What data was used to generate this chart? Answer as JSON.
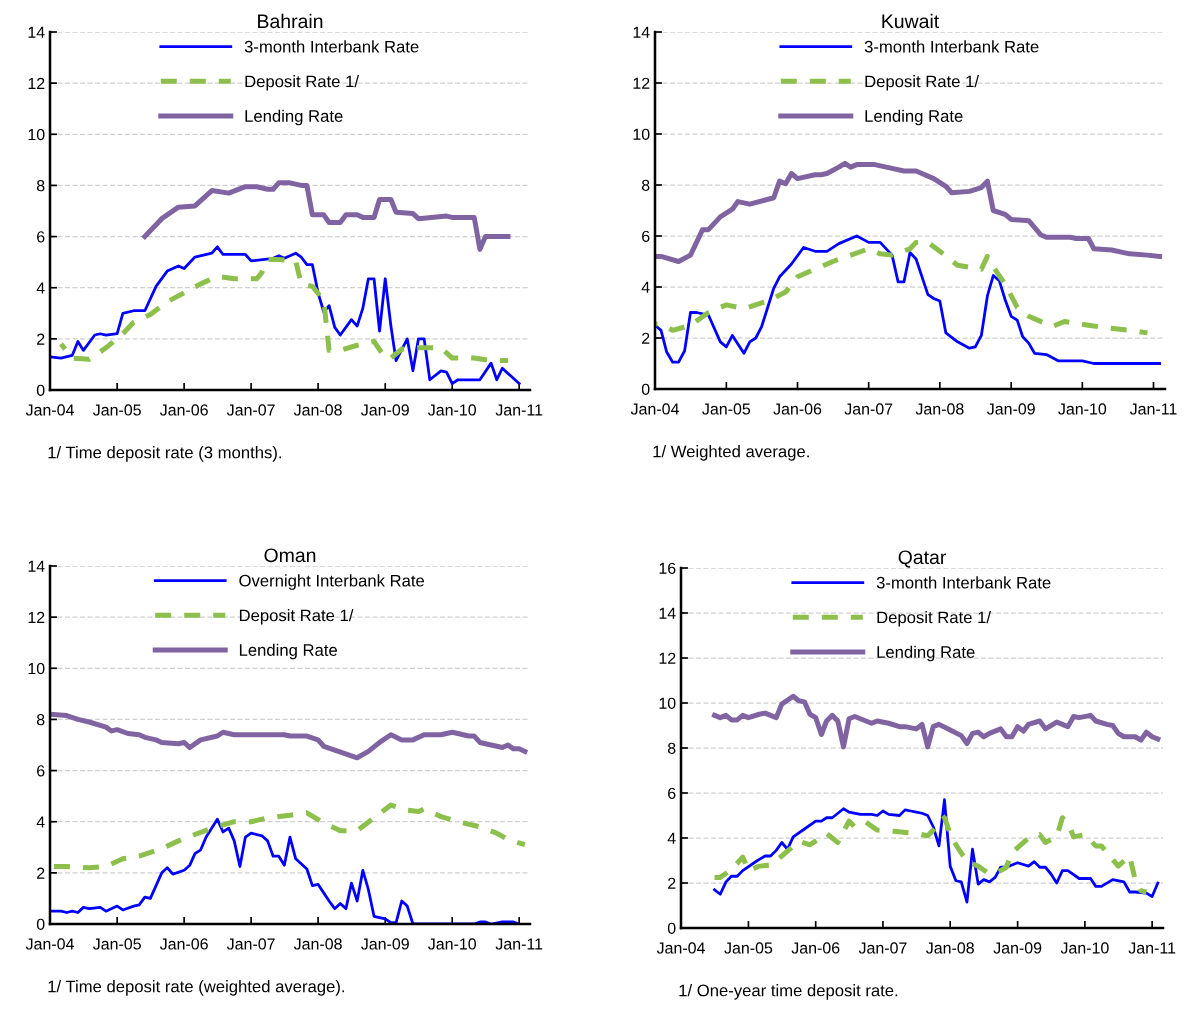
{
  "chart_data": [
    {
      "type": "line",
      "title": "Bahrain",
      "annotations": [
        "1/ Time deposit rate (3 months)."
      ],
      "legend": "top",
      "grid": "y",
      "xlim": [
        "2004-01",
        "2011-03"
      ],
      "xticks": [
        {
          "value": "2004-01",
          "label": "Jan-04"
        },
        {
          "value": "2005-01",
          "label": "Jan-05"
        },
        {
          "value": "2006-01",
          "label": "Jan-06"
        },
        {
          "value": "2007-01",
          "label": "Jan-07"
        },
        {
          "value": "2008-01",
          "label": "Jan-08"
        },
        {
          "value": "2009-01",
          "label": "Jan-09"
        },
        {
          "value": "2010-01",
          "label": "Jan-10"
        },
        {
          "value": "2011-01",
          "label": "Jan-11"
        }
      ],
      "ylim": [
        0,
        14
      ],
      "yticks": [
        0,
        2,
        4,
        6,
        8,
        10,
        12,
        14
      ],
      "series": [
        {
          "name": "3-month Interbank Rate",
          "color": "#0000ff",
          "line_style": "solid",
          "x": [
            "2004-01",
            "2004-03",
            "2004-05",
            "2004-06",
            "2004-07",
            "2004-09",
            "2004-10",
            "2004-11",
            "2005-01",
            "2005-02",
            "2005-04",
            "2005-06",
            "2005-08",
            "2005-10",
            "2005-12",
            "2006-01",
            "2006-03",
            "2006-06",
            "2006-07",
            "2006-08",
            "2006-12",
            "2007-01",
            "2007-05",
            "2007-06",
            "2007-07",
            "2007-09",
            "2007-10",
            "2007-11",
            "2007-12",
            "2008-01",
            "2008-02",
            "2008-03",
            "2008-04",
            "2008-05",
            "2008-07",
            "2008-08",
            "2008-09",
            "2008-10",
            "2008-11",
            "2008-12",
            "2009-01",
            "2009-02",
            "2009-03",
            "2009-05",
            "2009-06",
            "2009-07",
            "2009-08",
            "2009-09",
            "2009-11",
            "2009-12",
            "2010-01",
            "2010-02",
            "2010-06",
            "2010-08",
            "2010-09",
            "2010-10",
            "2011-01"
          ],
          "values": [
            1.3,
            1.25,
            1.35,
            1.9,
            1.55,
            2.15,
            2.2,
            2.15,
            2.2,
            3.0,
            3.1,
            3.1,
            4.05,
            4.65,
            4.85,
            4.75,
            5.2,
            5.35,
            5.6,
            5.3,
            5.3,
            5.05,
            5.15,
            5.25,
            5.15,
            5.35,
            5.2,
            4.9,
            4.9,
            3.8,
            3.05,
            3.3,
            2.45,
            2.15,
            2.75,
            2.5,
            3.2,
            4.35,
            4.35,
            2.3,
            4.35,
            2.5,
            1.15,
            2.0,
            0.75,
            2.0,
            2.0,
            0.4,
            0.75,
            0.7,
            0.25,
            0.4,
            0.4,
            1.05,
            0.4,
            0.85,
            0.25
          ]
        },
        {
          "name": "Deposit Rate 1/",
          "color": "#8cbf4b",
          "line_style": "dashed",
          "x": [
            "2004-03",
            "2004-05",
            "2004-08",
            "2004-11",
            "2005-02",
            "2005-04",
            "2005-07",
            "2005-10",
            "2006-01",
            "2006-04",
            "2006-07",
            "2006-10",
            "2007-02",
            "2007-03",
            "2007-04",
            "2007-06",
            "2007-09",
            "2007-10",
            "2007-12",
            "2008-02",
            "2008-03",
            "2008-05",
            "2008-08",
            "2008-11",
            "2009-01",
            "2009-02",
            "2009-04",
            "2009-07",
            "2009-11",
            "2010-01",
            "2010-05",
            "2010-08",
            "2010-11"
          ],
          "values": [
            1.8,
            1.25,
            1.2,
            1.65,
            2.2,
            2.65,
            2.95,
            3.45,
            3.8,
            4.15,
            4.45,
            4.35,
            4.35,
            4.6,
            5.1,
            5.1,
            5.05,
            4.15,
            4.05,
            3.5,
            1.55,
            1.55,
            1.75,
            1.9,
            1.25,
            1.25,
            1.6,
            1.65,
            1.65,
            1.25,
            1.25,
            1.15,
            1.15
          ]
        },
        {
          "name": "Lending Rate",
          "color": "#8064a2",
          "line_style": "solid",
          "x": [
            "2005-06",
            "2005-09",
            "2005-12",
            "2006-03",
            "2006-06",
            "2006-09",
            "2006-12",
            "2007-02",
            "2007-04",
            "2007-05",
            "2007-06",
            "2007-08",
            "2007-10",
            "2007-11",
            "2007-12",
            "2008-02",
            "2008-03",
            "2008-05",
            "2008-06",
            "2008-08",
            "2008-09",
            "2008-11",
            "2008-12",
            "2009-02",
            "2009-03",
            "2009-06",
            "2009-07",
            "2009-12",
            "2010-01",
            "2010-05",
            "2010-06",
            "2010-07",
            "2010-11"
          ],
          "values": [
            6.0,
            6.7,
            7.15,
            7.2,
            7.8,
            7.7,
            7.95,
            7.95,
            7.85,
            7.85,
            8.1,
            8.1,
            8.0,
            8.0,
            6.85,
            6.85,
            6.55,
            6.55,
            6.85,
            6.85,
            6.75,
            6.75,
            7.45,
            7.45,
            6.95,
            6.9,
            6.7,
            6.8,
            6.75,
            6.75,
            5.5,
            6.0,
            6.0
          ]
        }
      ]
    },
    {
      "type": "line",
      "title": "Kuwait",
      "annotations": [
        "1/ Weighted average."
      ],
      "legend": "top",
      "grid": "y",
      "xlim": [
        "2004-01",
        "2011-03"
      ],
      "xticks": [
        {
          "value": "2004-01",
          "label": "Jan-04"
        },
        {
          "value": "2005-01",
          "label": "Jan-05"
        },
        {
          "value": "2006-01",
          "label": "Jan-06"
        },
        {
          "value": "2007-01",
          "label": "Jan-07"
        },
        {
          "value": "2008-01",
          "label": "Jan-08"
        },
        {
          "value": "2009-01",
          "label": "Jan-09"
        },
        {
          "value": "2010-01",
          "label": "Jan-10"
        },
        {
          "value": "2011-01",
          "label": "Jan-11"
        }
      ],
      "ylim": [
        0,
        14
      ],
      "yticks": [
        0,
        2,
        4,
        6,
        8,
        10,
        12,
        14
      ],
      "series": [
        {
          "name": "3-month Interbank Rate",
          "color": "#0000ff",
          "line_style": "solid",
          "x": [
            "2004-01",
            "2004-02",
            "2004-03",
            "2004-04",
            "2004-05",
            "2004-06",
            "2004-07",
            "2004-08",
            "2004-10",
            "2004-12",
            "2005-01",
            "2005-02",
            "2005-04",
            "2005-05",
            "2005-06",
            "2005-07",
            "2005-09",
            "2005-10",
            "2005-12",
            "2006-02",
            "2006-04",
            "2006-06",
            "2006-08",
            "2006-11",
            "2007-01",
            "2007-03",
            "2007-05",
            "2007-06",
            "2007-07",
            "2007-08",
            "2007-09",
            "2007-11",
            "2007-12",
            "2008-01",
            "2008-02",
            "2008-04",
            "2008-06",
            "2008-07",
            "2008-08",
            "2008-09",
            "2008-10",
            "2008-11",
            "2008-12",
            "2009-01",
            "2009-02",
            "2009-03",
            "2009-04",
            "2009-05",
            "2009-07",
            "2009-09",
            "2010-01",
            "2010-03",
            "2011-02"
          ],
          "values": [
            2.5,
            2.3,
            1.45,
            1.05,
            1.05,
            1.5,
            3.0,
            3.0,
            2.9,
            1.85,
            1.65,
            2.1,
            1.4,
            1.85,
            2.0,
            2.45,
            3.95,
            4.4,
            4.9,
            5.55,
            5.4,
            5.4,
            5.7,
            6.0,
            5.75,
            5.75,
            5.25,
            4.2,
            4.2,
            5.35,
            5.1,
            3.7,
            3.55,
            3.45,
            2.2,
            1.85,
            1.6,
            1.65,
            2.1,
            3.65,
            4.45,
            4.25,
            3.5,
            2.85,
            2.7,
            2.05,
            1.8,
            1.4,
            1.35,
            1.1,
            1.1,
            1.0,
            1.0
          ]
        },
        {
          "name": "Deposit Rate 1/",
          "color": "#8cbf4b",
          "line_style": "dashed",
          "x": [
            "2004-01",
            "2004-02",
            "2004-04",
            "2004-07",
            "2004-10",
            "2005-01",
            "2005-04",
            "2005-08",
            "2005-11",
            "2006-01",
            "2006-03",
            "2006-07",
            "2006-10",
            "2007-01",
            "2007-03",
            "2007-05",
            "2007-08",
            "2007-09",
            "2007-11",
            "2008-01",
            "2008-04",
            "2008-08",
            "2008-09",
            "2008-10",
            "2008-12",
            "2009-02",
            "2009-04",
            "2009-08",
            "2009-10",
            "2010-02",
            "2010-05",
            "2010-09",
            "2010-12"
          ],
          "values": [
            2.55,
            2.55,
            2.3,
            2.5,
            3.0,
            3.3,
            3.15,
            3.45,
            3.8,
            4.4,
            4.6,
            5.0,
            5.25,
            5.5,
            5.3,
            5.25,
            5.5,
            5.75,
            5.75,
            5.4,
            4.85,
            4.7,
            5.2,
            4.8,
            4.1,
            3.2,
            2.85,
            2.45,
            2.65,
            2.5,
            2.4,
            2.3,
            2.2
          ]
        },
        {
          "name": "Lending Rate",
          "color": "#8064a2",
          "line_style": "solid",
          "x": [
            "2004-01",
            "2004-02",
            "2004-05",
            "2004-07",
            "2004-09",
            "2004-10",
            "2004-12",
            "2005-02",
            "2005-03",
            "2005-05",
            "2005-09",
            "2005-10",
            "2005-11",
            "2005-12",
            "2006-01",
            "2006-04",
            "2006-05",
            "2006-06",
            "2006-08",
            "2006-09",
            "2006-10",
            "2006-11",
            "2007-02",
            "2007-05",
            "2007-07",
            "2007-09",
            "2007-10",
            "2007-12",
            "2008-02",
            "2008-03",
            "2008-06",
            "2008-08",
            "2008-09",
            "2008-10",
            "2008-12",
            "2009-01",
            "2009-04",
            "2009-06",
            "2009-07",
            "2009-11",
            "2009-12",
            "2010-02",
            "2010-03",
            "2010-06",
            "2010-08",
            "2010-09",
            "2010-12",
            "2011-02"
          ],
          "values": [
            5.2,
            5.2,
            5.0,
            5.25,
            6.25,
            6.25,
            6.75,
            7.05,
            7.35,
            7.25,
            7.5,
            8.15,
            8.05,
            8.45,
            8.25,
            8.4,
            8.4,
            8.45,
            8.7,
            8.85,
            8.7,
            8.8,
            8.8,
            8.65,
            8.55,
            8.55,
            8.45,
            8.25,
            7.95,
            7.7,
            7.75,
            7.9,
            8.15,
            7.0,
            6.85,
            6.65,
            6.6,
            6.05,
            5.95,
            5.95,
            5.9,
            5.9,
            5.5,
            5.45,
            5.35,
            5.3,
            5.25,
            5.2
          ]
        }
      ]
    },
    {
      "type": "line",
      "title": "Oman",
      "annotations": [
        "1/ Time deposit rate (weighted average)."
      ],
      "legend": "top",
      "grid": "y",
      "xlim": [
        "2004-01",
        "2011-03"
      ],
      "xticks": [
        {
          "value": "2004-01",
          "label": "Jan-04"
        },
        {
          "value": "2005-01",
          "label": "Jan-05"
        },
        {
          "value": "2006-01",
          "label": "Jan-06"
        },
        {
          "value": "2007-01",
          "label": "Jan-07"
        },
        {
          "value": "2008-01",
          "label": "Jan-08"
        },
        {
          "value": "2009-01",
          "label": "Jan-09"
        },
        {
          "value": "2010-01",
          "label": "Jan-10"
        },
        {
          "value": "2011-01",
          "label": "Jan-11"
        }
      ],
      "ylim": [
        0,
        14
      ],
      "yticks": [
        0,
        2,
        4,
        6,
        8,
        10,
        12,
        14
      ],
      "series": [
        {
          "name": "Overnight Interbank Rate",
          "color": "#0000ff",
          "line_style": "solid",
          "x": [
            "2004-01",
            "2004-03",
            "2004-04",
            "2004-05",
            "2004-06",
            "2004-07",
            "2004-08",
            "2004-10",
            "2004-11",
            "2005-01",
            "2005-02",
            "2005-04",
            "2005-05",
            "2005-06",
            "2005-07",
            "2005-09",
            "2005-10",
            "2005-11",
            "2006-01",
            "2006-02",
            "2006-03",
            "2006-04",
            "2006-05",
            "2006-07",
            "2006-08",
            "2006-09",
            "2006-10",
            "2006-11",
            "2006-12",
            "2007-01",
            "2007-03",
            "2007-04",
            "2007-05",
            "2007-06",
            "2007-07",
            "2007-08",
            "2007-09",
            "2007-11",
            "2007-12",
            "2008-01",
            "2008-03",
            "2008-04",
            "2008-05",
            "2008-06",
            "2008-07",
            "2008-08",
            "2008-09",
            "2008-10",
            "2008-11",
            "2009-01",
            "2009-02",
            "2009-03",
            "2009-04",
            "2009-05",
            "2009-06",
            "2010-05",
            "2010-06",
            "2010-07",
            "2010-08",
            "2010-10",
            "2010-12",
            "2011-01"
          ],
          "values": [
            0.5,
            0.5,
            0.45,
            0.5,
            0.45,
            0.65,
            0.6,
            0.65,
            0.5,
            0.7,
            0.55,
            0.7,
            0.75,
            1.05,
            1.0,
            2.0,
            2.2,
            1.95,
            2.1,
            2.3,
            2.75,
            2.9,
            3.4,
            4.1,
            3.6,
            3.75,
            3.25,
            2.25,
            3.4,
            3.55,
            3.45,
            3.25,
            2.65,
            2.65,
            2.3,
            3.4,
            2.55,
            2.15,
            1.5,
            1.55,
            0.9,
            0.6,
            0.8,
            0.6,
            1.6,
            0.9,
            2.1,
            1.35,
            0.3,
            0.2,
            0.05,
            0.05,
            0.9,
            0.7,
            0.0,
            0.0,
            0.08,
            0.08,
            0.0,
            0.08,
            0.08,
            0.0
          ]
        },
        {
          "name": "Deposit Rate 1/",
          "color": "#8cbf4b",
          "line_style": "dashed",
          "x": [
            "2004-01",
            "2004-04",
            "2004-08",
            "2004-11",
            "2005-02",
            "2005-05",
            "2005-09",
            "2005-12",
            "2006-03",
            "2006-06",
            "2006-10",
            "2007-01",
            "2007-04",
            "2007-08",
            "2007-11",
            "2008-02",
            "2008-05",
            "2008-08",
            "2008-11",
            "2009-02",
            "2009-05",
            "2009-07",
            "2009-08",
            "2009-11",
            "2010-02",
            "2010-06",
            "2010-09",
            "2010-11",
            "2011-02"
          ],
          "values": [
            2.25,
            2.25,
            2.2,
            2.25,
            2.55,
            2.65,
            2.95,
            3.25,
            3.5,
            3.75,
            4.0,
            4.0,
            4.15,
            4.25,
            4.35,
            3.95,
            3.65,
            3.65,
            4.15,
            4.65,
            4.45,
            4.4,
            4.5,
            4.2,
            4.0,
            3.8,
            3.55,
            3.3,
            3.1
          ]
        },
        {
          "name": "Lending Rate",
          "color": "#8064a2",
          "line_style": "solid",
          "x": [
            "2004-01",
            "2004-04",
            "2004-06",
            "2004-08",
            "2004-11",
            "2004-12",
            "2005-01",
            "2005-03",
            "2005-05",
            "2005-06",
            "2005-08",
            "2005-09",
            "2005-12",
            "2006-01",
            "2006-02",
            "2006-04",
            "2006-07",
            "2006-08",
            "2006-10",
            "2007-07",
            "2007-08",
            "2007-11",
            "2008-01",
            "2008-02",
            "2008-04",
            "2008-08",
            "2008-10",
            "2008-12",
            "2009-02",
            "2009-04",
            "2009-06",
            "2009-08",
            "2009-11",
            "2010-01",
            "2010-02",
            "2010-04",
            "2010-05",
            "2010-06",
            "2010-08",
            "2010-09",
            "2010-10",
            "2010-11",
            "2010-12",
            "2011-01",
            "2011-02"
          ],
          "values": [
            8.2,
            8.15,
            8.0,
            7.9,
            7.7,
            7.55,
            7.6,
            7.45,
            7.4,
            7.3,
            7.2,
            7.1,
            7.05,
            7.1,
            6.9,
            7.2,
            7.35,
            7.5,
            7.4,
            7.4,
            7.35,
            7.35,
            7.2,
            6.95,
            6.8,
            6.5,
            6.75,
            7.1,
            7.4,
            7.2,
            7.2,
            7.4,
            7.4,
            7.5,
            7.45,
            7.35,
            7.35,
            7.1,
            7.0,
            6.95,
            6.9,
            7.0,
            6.85,
            6.85,
            6.75
          ]
        }
      ]
    },
    {
      "type": "line",
      "title": "Qatar",
      "annotations": [
        "1/ One-year time deposit rate."
      ],
      "legend": "top",
      "grid": "y",
      "xlim": [
        "2004-01",
        "2011-03"
      ],
      "xticks": [
        {
          "value": "2004-01",
          "label": "Jan-04"
        },
        {
          "value": "2005-01",
          "label": "Jan-05"
        },
        {
          "value": "2006-01",
          "label": "Jan-06"
        },
        {
          "value": "2007-01",
          "label": "Jan-07"
        },
        {
          "value": "2008-01",
          "label": "Jan-08"
        },
        {
          "value": "2009-01",
          "label": "Jan-09"
        },
        {
          "value": "2010-01",
          "label": "Jan-10"
        },
        {
          "value": "2011-01",
          "label": "Jan-11"
        }
      ],
      "ylim": [
        0,
        16
      ],
      "yticks": [
        0,
        2,
        4,
        6,
        8,
        10,
        12,
        14,
        16
      ],
      "series": [
        {
          "name": "3-month Interbank Rate",
          "color": "#0000ff",
          "line_style": "solid",
          "x": [
            "2004-07",
            "2004-08",
            "2004-09",
            "2004-10",
            "2004-11",
            "2004-12",
            "2005-02",
            "2005-03",
            "2005-04",
            "2005-05",
            "2005-06",
            "2005-07",
            "2005-08",
            "2005-09",
            "2005-11",
            "2006-01",
            "2006-02",
            "2006-03",
            "2006-04",
            "2006-06",
            "2006-07",
            "2006-09",
            "2006-11",
            "2006-12",
            "2007-01",
            "2007-02",
            "2007-04",
            "2007-05",
            "2007-06",
            "2007-07",
            "2007-08",
            "2007-09",
            "2007-10",
            "2007-11",
            "2007-12",
            "2008-01",
            "2008-02",
            "2008-03",
            "2008-04",
            "2008-05",
            "2008-06",
            "2008-07",
            "2008-08",
            "2008-09",
            "2008-10",
            "2008-11",
            "2009-01",
            "2009-03",
            "2009-04",
            "2009-05",
            "2009-06",
            "2009-07",
            "2009-08",
            "2009-09",
            "2009-10",
            "2009-12",
            "2010-02",
            "2010-03",
            "2010-04",
            "2010-06",
            "2010-08",
            "2010-09",
            "2010-10",
            "2010-12",
            "2011-01",
            "2011-02"
          ],
          "values": [
            1.7,
            1.5,
            2.05,
            2.3,
            2.3,
            2.55,
            2.9,
            3.05,
            3.2,
            3.2,
            3.45,
            3.8,
            3.5,
            4.05,
            4.4,
            4.75,
            4.75,
            4.9,
            4.9,
            5.3,
            5.15,
            5.05,
            5.05,
            5.0,
            5.2,
            5.05,
            5.0,
            5.25,
            5.2,
            5.15,
            5.1,
            5.0,
            4.5,
            3.65,
            5.7,
            2.75,
            2.1,
            2.05,
            1.15,
            3.5,
            1.95,
            2.15,
            2.05,
            2.25,
            2.7,
            2.7,
            2.9,
            2.75,
            2.95,
            2.7,
            2.7,
            2.4,
            2.0,
            2.55,
            2.55,
            2.2,
            2.2,
            1.85,
            1.85,
            2.15,
            2.05,
            1.6,
            1.6,
            1.55,
            1.4,
            2.0
          ]
        },
        {
          "name": "Deposit Rate 1/",
          "color": "#8cbf4b",
          "line_style": "dashed",
          "x": [
            "2004-07",
            "2004-08",
            "2004-10",
            "2004-12",
            "2005-01",
            "2005-03",
            "2005-05",
            "2005-07",
            "2005-10",
            "2005-12",
            "2006-03",
            "2006-05",
            "2006-07",
            "2006-08",
            "2006-10",
            "2006-12",
            "2007-03",
            "2007-07",
            "2007-09",
            "2007-10",
            "2007-12",
            "2008-01",
            "2008-02",
            "2008-04",
            "2008-06",
            "2008-08",
            "2008-10",
            "2008-11",
            "2008-12",
            "2009-03",
            "2009-05",
            "2009-06",
            "2009-08",
            "2009-09",
            "2009-10",
            "2009-11",
            "2010-01",
            "2010-03",
            "2010-04",
            "2010-07",
            "2010-09",
            "2010-10",
            "2010-11",
            "2010-12"
          ],
          "values": [
            2.25,
            2.25,
            2.6,
            3.15,
            2.55,
            2.75,
            2.8,
            3.2,
            3.85,
            3.7,
            4.2,
            3.8,
            4.75,
            4.5,
            4.7,
            4.35,
            4.3,
            4.2,
            4.1,
            4.35,
            4.9,
            4.2,
            3.7,
            2.95,
            2.75,
            2.4,
            2.55,
            2.7,
            3.35,
            4.0,
            4.15,
            3.8,
            4.05,
            4.9,
            4.65,
            4.05,
            4.15,
            3.65,
            3.65,
            2.75,
            3.2,
            2.15,
            1.65,
            1.6
          ]
        },
        {
          "name": "Lending Rate",
          "color": "#8064a2",
          "line_style": "solid",
          "x": [
            "2004-07",
            "2004-08",
            "2004-09",
            "2004-10",
            "2004-11",
            "2004-12",
            "2005-01",
            "2005-03",
            "2005-04",
            "2005-06",
            "2005-07",
            "2005-09",
            "2005-10",
            "2005-11",
            "2005-12",
            "2006-01",
            "2006-02",
            "2006-03",
            "2006-04",
            "2006-05",
            "2006-06",
            "2006-07",
            "2006-08",
            "2006-10",
            "2006-11",
            "2006-12",
            "2007-02",
            "2007-04",
            "2007-05",
            "2007-07",
            "2007-08",
            "2007-09",
            "2007-10",
            "2007-11",
            "2008-01",
            "2008-03",
            "2008-04",
            "2008-05",
            "2008-06",
            "2008-07",
            "2008-08",
            "2008-10",
            "2008-11",
            "2008-12",
            "2009-01",
            "2009-02",
            "2009-03",
            "2009-05",
            "2009-06",
            "2009-08",
            "2009-10",
            "2009-11",
            "2009-12",
            "2010-02",
            "2010-03",
            "2010-05",
            "2010-06",
            "2010-07",
            "2010-08",
            "2010-10",
            "2010-11",
            "2010-12",
            "2011-01",
            "2011-02"
          ],
          "values": [
            9.45,
            9.35,
            9.45,
            9.25,
            9.25,
            9.45,
            9.35,
            9.5,
            9.55,
            9.35,
            9.95,
            10.3,
            10.1,
            10.05,
            9.5,
            9.35,
            8.6,
            9.2,
            9.45,
            9.2,
            8.05,
            9.3,
            9.4,
            9.2,
            9.1,
            9.2,
            9.1,
            8.95,
            8.95,
            8.85,
            9.05,
            8.05,
            8.95,
            9.05,
            8.8,
            8.55,
            8.2,
            8.65,
            8.7,
            8.5,
            8.65,
            8.85,
            8.5,
            8.5,
            8.95,
            8.75,
            9.05,
            9.2,
            8.85,
            9.15,
            8.95,
            9.4,
            9.35,
            9.45,
            9.2,
            9.05,
            9.0,
            8.65,
            8.5,
            8.5,
            8.35,
            8.7,
            8.5,
            8.4
          ]
        }
      ]
    }
  ]
}
